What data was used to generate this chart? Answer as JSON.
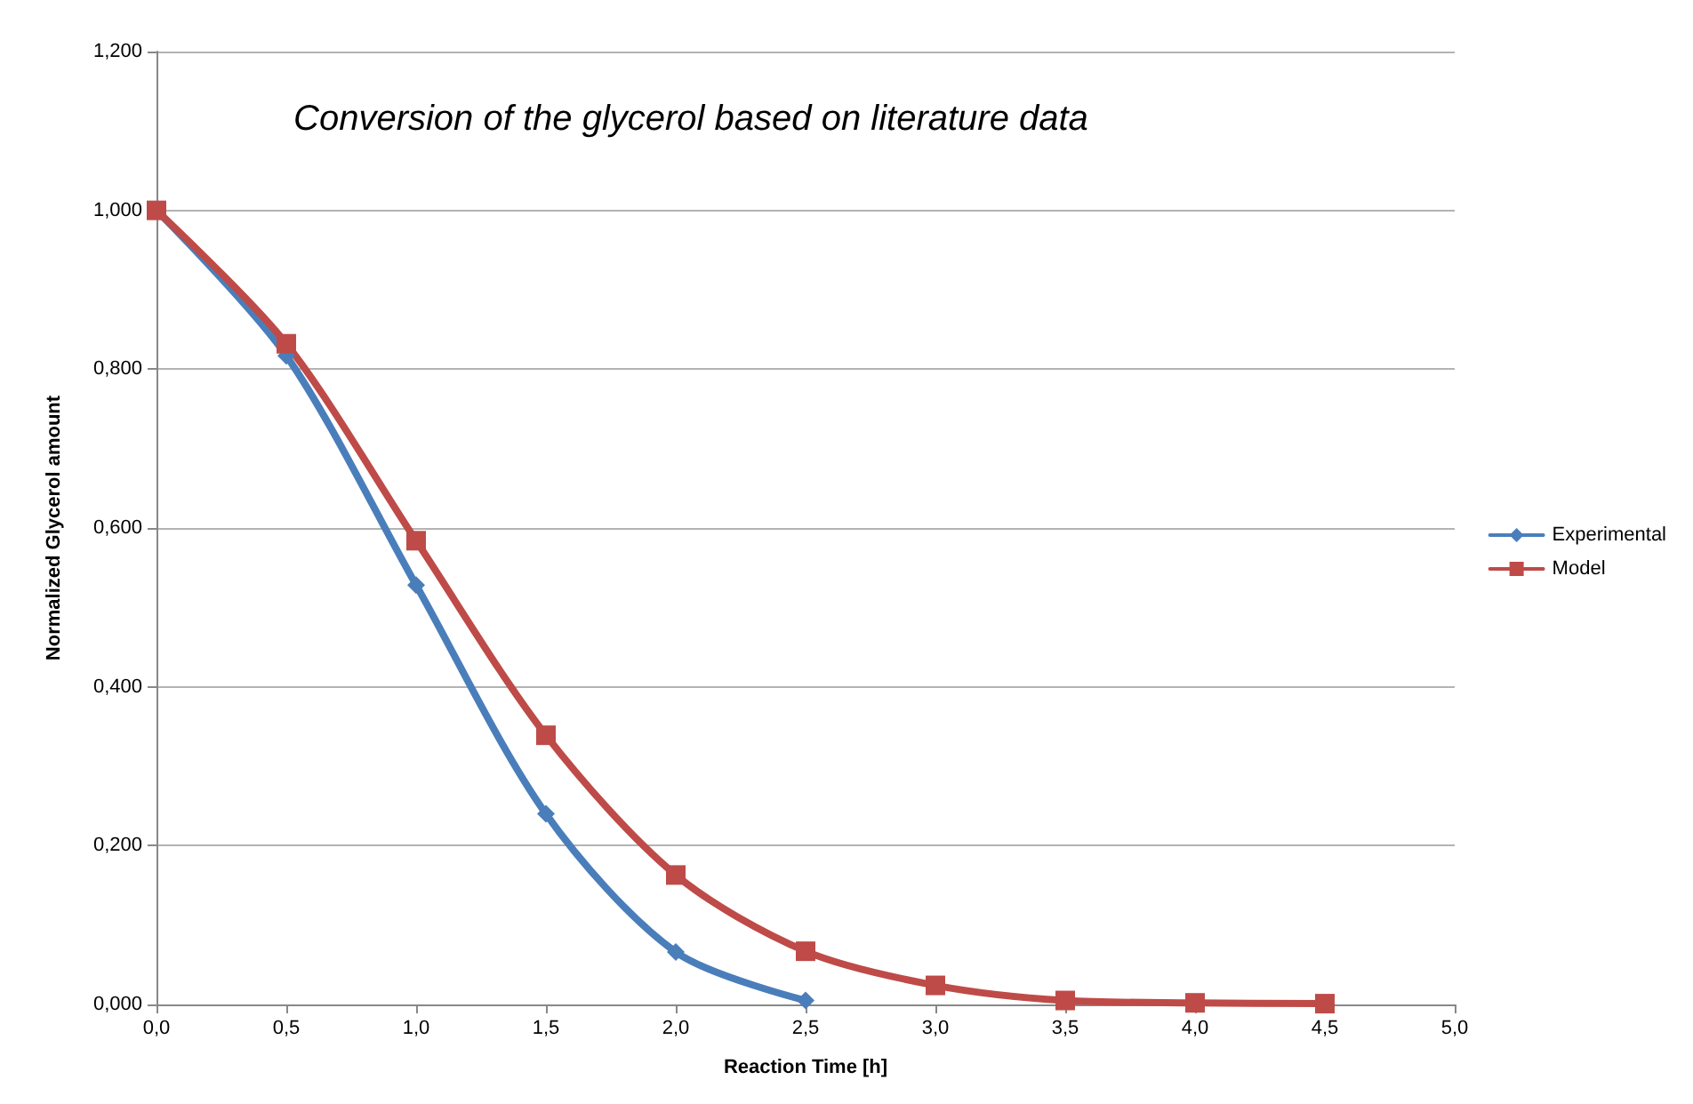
{
  "chart_data": {
    "type": "line",
    "title": "Conversion of the glycerol based on literature data",
    "xlabel": "Reaction Time [h]",
    "ylabel": "Normalized Glycerol amount",
    "xlim": [
      0,
      5
    ],
    "xticks": [
      {
        "value": 0,
        "label": "0,0"
      },
      {
        "value": 0.5,
        "label": "0,5"
      },
      {
        "value": 1,
        "label": "1,0"
      },
      {
        "value": 1.5,
        "label": "1,5"
      },
      {
        "value": 2,
        "label": "2,0"
      },
      {
        "value": 2.5,
        "label": "2,5"
      },
      {
        "value": 3,
        "label": "3,0"
      },
      {
        "value": 3.5,
        "label": "3,5"
      },
      {
        "value": 4,
        "label": "4,0"
      },
      {
        "value": 4.5,
        "label": "4,5"
      },
      {
        "value": 5,
        "label": "5,0"
      }
    ],
    "ylim": [
      0,
      1.2
    ],
    "yticks": [
      {
        "value": 0,
        "label": "0,000"
      },
      {
        "value": 0.2,
        "label": "0,200"
      },
      {
        "value": 0.4,
        "label": "0,400"
      },
      {
        "value": 0.6,
        "label": "0,600"
      },
      {
        "value": 0.8,
        "label": "0,800"
      },
      {
        "value": 1,
        "label": "1,000"
      },
      {
        "value": 1.2,
        "label": "1,200"
      }
    ],
    "grid": "y",
    "legend": "right",
    "series": [
      {
        "name": "Experimental",
        "color": "#4a7ebb",
        "marker": "diamond",
        "x": [
          0,
          0.5,
          1,
          1.5,
          2,
          2.5
        ],
        "values": [
          1.0,
          0.817,
          0.528,
          0.24,
          0.066,
          0.005
        ]
      },
      {
        "name": "Model",
        "color": "#be4b48",
        "marker": "square",
        "x": [
          0,
          0.5,
          1,
          1.5,
          2,
          2.5,
          3,
          3.5,
          4,
          4.5
        ],
        "values": [
          1.0,
          0.832,
          0.584,
          0.339,
          0.163,
          0.067,
          0.024,
          0.005,
          0.002,
          0.001
        ]
      }
    ]
  }
}
